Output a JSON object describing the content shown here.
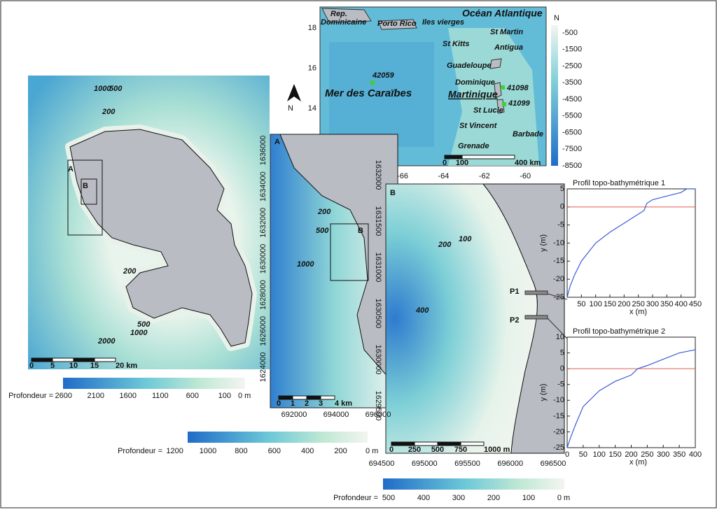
{
  "main_map": {
    "contours": [
      1000,
      500,
      200,
      200,
      500,
      1000,
      2000
    ],
    "labels": [
      "A",
      "B"
    ],
    "north": "N",
    "scale": [
      0,
      5,
      10,
      15,
      {
        "value": 20,
        "label": "20 km"
      }
    ],
    "colorbar": {
      "label": "Profondeur =",
      "ticks": [
        2600,
        2100,
        1600,
        1100,
        600,
        100,
        {
          "value": 0,
          "label": "0 m"
        }
      ]
    }
  },
  "inset": {
    "places": [
      "Rep.",
      "Dominicaine",
      "Porto Rico",
      "Iles vierges",
      "Océan Atlantique",
      "St Martin",
      "St Kitts",
      "Antigua",
      "Guadeloupe",
      "Dominique",
      "Martinique",
      "St Lucie",
      "St Vincent",
      "Barbade",
      "Grenade",
      "Mer des Caraïbes"
    ],
    "stations": [
      "42059",
      "41098",
      "41099"
    ],
    "lat_ticks": [
      18,
      16,
      14
    ],
    "lon_ticks": [
      -66,
      -64,
      -62,
      -60
    ],
    "scale": [
      0,
      100,
      {
        "value": 400,
        "label": "400 km"
      }
    ],
    "north": "N",
    "colorbar_ticks": [
      -500,
      -1500,
      -2500,
      -3500,
      -4500,
      -5500,
      -6500,
      -7500,
      -8500
    ]
  },
  "panel_a": {
    "label": "A",
    "contours": [
      200,
      500,
      1000
    ],
    "box": "B",
    "yticks": [
      1636000,
      1634000,
      1632000,
      1630000,
      1628000,
      1626000,
      1624000
    ],
    "xticks": [
      692000,
      694000,
      696000
    ],
    "scale": [
      0,
      1,
      2,
      3,
      {
        "value": 4,
        "label": "4 km"
      }
    ],
    "colorbar": {
      "label": "Profondeur =",
      "ticks": [
        1200,
        1000,
        800,
        600,
        400,
        200,
        {
          "value": 0,
          "label": "0 m"
        }
      ]
    }
  },
  "panel_b": {
    "label": "B",
    "contours": [
      100,
      200,
      400
    ],
    "profiles": [
      "P1",
      "P2"
    ],
    "yticks": [
      1632000,
      1631500,
      1631000,
      1630500,
      1630000,
      1629500
    ],
    "xticks": [
      694500,
      695000,
      695500,
      696000,
      696500
    ],
    "scale": [
      0,
      250,
      500,
      750,
      {
        "value": 1000,
        "label": "1000 m"
      }
    ],
    "colorbar": {
      "label": "Profondeur =",
      "ticks": [
        500,
        400,
        300,
        200,
        100,
        {
          "value": 0,
          "label": "0 m"
        }
      ]
    }
  },
  "chart_data": [
    {
      "type": "line",
      "title": "Profil topo-bathymétrique 1",
      "x_label": "x (m)",
      "y_label": "y (m)",
      "color": "#3b5bd9",
      "x": [
        0,
        10,
        25,
        50,
        100,
        150,
        200,
        250,
        270,
        280,
        300,
        350,
        400,
        420,
        450
      ],
      "values": [
        -25,
        -22,
        -19,
        -15,
        -10,
        -7,
        -4.5,
        -2,
        -1,
        1,
        2,
        3,
        4,
        5,
        5
      ],
      "xlim": [
        0,
        450
      ],
      "ylim": [
        -25,
        5
      ],
      "xticks": [
        50,
        100,
        150,
        200,
        250,
        300,
        350,
        400,
        450
      ],
      "yticks": [
        -25,
        -20,
        -15,
        -10,
        -5,
        0,
        5
      ],
      "ref_line": {
        "value": 0,
        "color": "#e05a55"
      }
    },
    {
      "type": "line",
      "title": "Profil topo-bathymétrique 2",
      "x_label": "x (m)",
      "y_label": "y (m)",
      "color": "#3b5bd9",
      "x": [
        0,
        10,
        25,
        50,
        100,
        150,
        200,
        220,
        250,
        300,
        350,
        400
      ],
      "values": [
        -25,
        -22,
        -18,
        -12,
        -7,
        -4,
        -2,
        0,
        1,
        3,
        5,
        6
      ],
      "xlim": [
        0,
        400
      ],
      "ylim": [
        -25,
        10
      ],
      "xticks": [
        0,
        50,
        100,
        150,
        200,
        250,
        300,
        350,
        400
      ],
      "yticks": [
        -25,
        -20,
        -15,
        -10,
        -5,
        0,
        5,
        10
      ],
      "ref_line": {
        "value": 0,
        "color": "#e05a55"
      }
    }
  ]
}
